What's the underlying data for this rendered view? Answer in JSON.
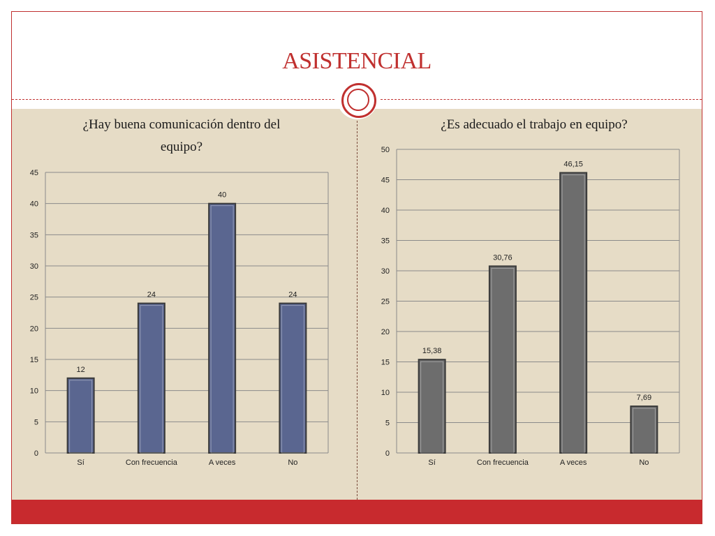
{
  "slide": {
    "title": "ASISTENCIAL",
    "colors": {
      "accent": "#c0302f",
      "background": "#e6dcc6",
      "footer": "#c82a2e"
    }
  },
  "chart_data": [
    {
      "type": "bar",
      "title": "¿Hay buena comunicación dentro del equipo?",
      "categories": [
        "Sí",
        "Con frecuencia",
        "A veces",
        "No"
      ],
      "values": [
        12,
        24,
        40,
        24
      ],
      "data_labels": [
        "12",
        "24",
        "40",
        "24"
      ],
      "ylim": [
        0,
        45
      ],
      "yticks": [
        "0",
        "5",
        "10",
        "15",
        "20",
        "25",
        "30",
        "35",
        "40",
        "45"
      ],
      "grid": true,
      "bar_color": "#5a6690"
    },
    {
      "type": "bar",
      "title": "¿Es adecuado el trabajo en equipo?",
      "categories": [
        "Sí",
        "Con frecuencia",
        "A veces",
        "No"
      ],
      "values": [
        15.38,
        30.76,
        46.15,
        7.69
      ],
      "data_labels": [
        "15,38",
        "30,76",
        "46,15",
        "7,69"
      ],
      "ylim": [
        0,
        50
      ],
      "yticks": [
        "0",
        "5",
        "10",
        "15",
        "20",
        "25",
        "30",
        "35",
        "40",
        "45",
        "50"
      ],
      "grid": true,
      "bar_color": "#6d6d6d"
    }
  ]
}
